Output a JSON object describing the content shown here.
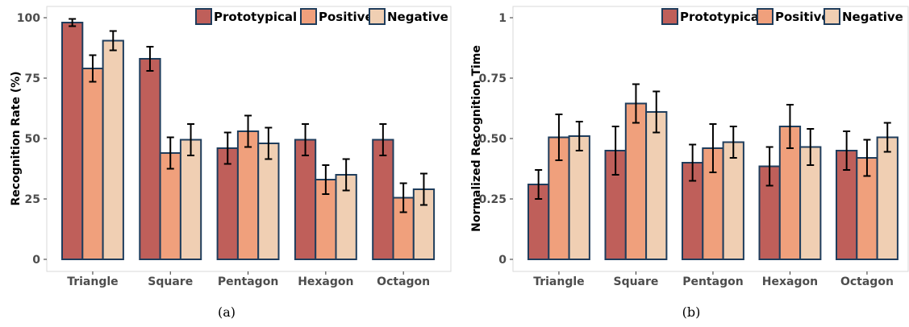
{
  "chart_data": [
    {
      "type": "bar",
      "caption": "(a)",
      "ylabel": "Recognition Rate (%)",
      "ylim": [
        0,
        100
      ],
      "yticks": [
        0,
        25,
        50,
        75,
        100
      ],
      "ytick_labels": [
        "0",
        "25",
        "50",
        "75",
        "100"
      ],
      "categories": [
        "Triangle",
        "Square",
        "Pentagon",
        "Hexagon",
        "Octagon"
      ],
      "legend_position": "top-right",
      "series": [
        {
          "name": "Prototypical",
          "color": "#bf5f5a",
          "values": [
            98,
            83,
            46,
            49.5,
            49.5
          ],
          "err": [
            1.5,
            5,
            6.5,
            6.5,
            6.5
          ]
        },
        {
          "name": "Positive",
          "color": "#f0a07c",
          "values": [
            79,
            44,
            53,
            33,
            25.5
          ],
          "err": [
            5.5,
            6.5,
            6.5,
            6,
            6
          ]
        },
        {
          "name": "Negative",
          "color": "#f0cfb3",
          "values": [
            90.5,
            49.5,
            48,
            35,
            29
          ],
          "err": [
            4,
            6.5,
            6.5,
            6.5,
            6.5
          ]
        }
      ]
    },
    {
      "type": "bar",
      "caption": "(b)",
      "ylabel": "Normalized Recognition Time",
      "ylim": [
        0,
        1
      ],
      "yticks": [
        0,
        0.25,
        0.5,
        0.75,
        1
      ],
      "ytick_labels": [
        "0",
        "0.25",
        "0.50",
        "0.75",
        "1"
      ],
      "categories": [
        "Triangle",
        "Square",
        "Pentagon",
        "Hexagon",
        "Octagon"
      ],
      "legend_position": "top-right",
      "series": [
        {
          "name": "Prototypical",
          "color": "#bf5f5a",
          "values": [
            0.31,
            0.45,
            0.4,
            0.385,
            0.45
          ],
          "err": [
            0.06,
            0.1,
            0.075,
            0.08,
            0.08
          ]
        },
        {
          "name": "Positive",
          "color": "#f0a07c",
          "values": [
            0.505,
            0.645,
            0.46,
            0.55,
            0.42
          ],
          "err": [
            0.095,
            0.08,
            0.1,
            0.09,
            0.075
          ]
        },
        {
          "name": "Negative",
          "color": "#f0cfb3",
          "values": [
            0.51,
            0.61,
            0.485,
            0.465,
            0.505
          ],
          "err": [
            0.06,
            0.085,
            0.065,
            0.075,
            0.06
          ]
        }
      ]
    }
  ]
}
